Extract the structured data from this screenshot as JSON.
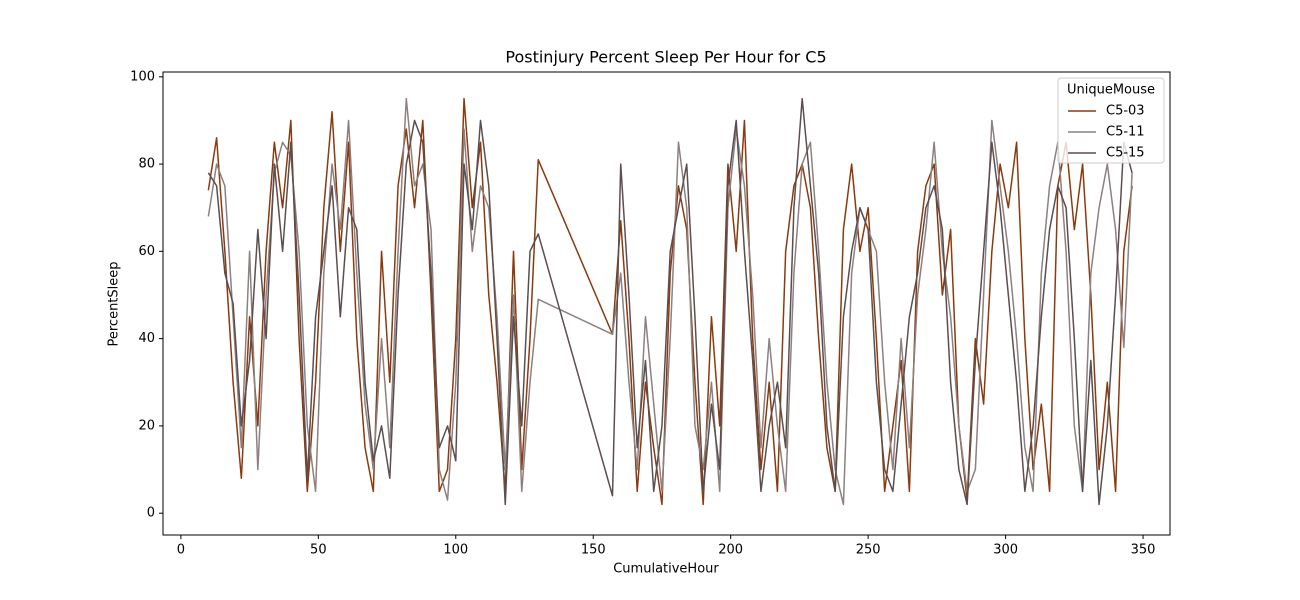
{
  "chart_data": {
    "type": "line",
    "title": "Postinjury Percent Sleep Per Hour for C5",
    "x_label": "CumulativeHour",
    "y_label": "PercentSleep",
    "legend_title": "UniqueMouse",
    "legend_position": "upper right",
    "grid": false,
    "xlim": [
      -6.5,
      359.8
    ],
    "ylim": [
      -5,
      101.1
    ],
    "xticks": [
      0,
      50,
      100,
      150,
      200,
      250,
      300,
      350
    ],
    "yticks": [
      0,
      20,
      40,
      60,
      80,
      100
    ],
    "x": [
      10,
      13,
      16,
      19,
      22,
      25,
      28,
      31,
      34,
      37,
      40,
      43,
      46,
      49,
      52,
      55,
      58,
      61,
      64,
      67,
      70,
      73,
      76,
      79,
      82,
      85,
      88,
      91,
      94,
      97,
      100,
      103,
      106,
      109,
      112,
      115,
      118,
      121,
      124,
      127,
      130,
      157,
      160,
      163,
      166,
      169,
      172,
      175,
      178,
      181,
      184,
      187,
      190,
      193,
      196,
      199,
      202,
      205,
      208,
      211,
      214,
      217,
      220,
      223,
      226,
      229,
      232,
      235,
      238,
      241,
      244,
      247,
      250,
      253,
      256,
      259,
      262,
      265,
      268,
      271,
      274,
      277,
      280,
      283,
      286,
      289,
      292,
      295,
      298,
      301,
      304,
      307,
      310,
      313,
      316,
      319,
      322,
      325,
      328,
      331,
      334,
      337,
      340,
      343,
      346
    ],
    "series": [
      {
        "name": "C5-03",
        "color": "#8b3a0f",
        "values": [
          74,
          86,
          60,
          30,
          8,
          45,
          20,
          60,
          85,
          70,
          90,
          40,
          5,
          30,
          70,
          92,
          60,
          85,
          40,
          15,
          5,
          60,
          30,
          75,
          88,
          70,
          90,
          50,
          5,
          10,
          40,
          95,
          70,
          85,
          50,
          30,
          5,
          60,
          10,
          40,
          81,
          41,
          67,
          40,
          5,
          30,
          15,
          2,
          55,
          75,
          65,
          30,
          2,
          45,
          20,
          80,
          60,
          90,
          40,
          10,
          30,
          5,
          60,
          75,
          80,
          70,
          40,
          15,
          5,
          65,
          80,
          60,
          70,
          40,
          5,
          20,
          35,
          5,
          60,
          75,
          80,
          50,
          65,
          20,
          3,
          40,
          25,
          60,
          80,
          70,
          85,
          40,
          10,
          25,
          5,
          75,
          85,
          65,
          80,
          50,
          10,
          30,
          5,
          60,
          75
        ]
      },
      {
        "name": "C5-11",
        "color": "#8c8080",
        "values": [
          68,
          80,
          75,
          45,
          15,
          60,
          10,
          50,
          78,
          85,
          82,
          60,
          20,
          5,
          55,
          80,
          65,
          90,
          55,
          25,
          10,
          40,
          15,
          60,
          95,
          75,
          80,
          65,
          10,
          3,
          30,
          88,
          60,
          75,
          70,
          45,
          10,
          50,
          5,
          30,
          49,
          41,
          55,
          30,
          10,
          45,
          25,
          5,
          40,
          85,
          70,
          20,
          10,
          30,
          5,
          70,
          88,
          75,
          50,
          15,
          40,
          20,
          5,
          55,
          80,
          85,
          60,
          30,
          10,
          2,
          55,
          70,
          65,
          60,
          30,
          10,
          40,
          15,
          50,
          65,
          85,
          60,
          45,
          20,
          5,
          10,
          50,
          90,
          75,
          60,
          40,
          15,
          5,
          55,
          75,
          85,
          60,
          20,
          5,
          55,
          70,
          80,
          65,
          38,
          78
        ]
      },
      {
        "name": "C5-15",
        "color": "#5c4e4e",
        "values": [
          78,
          75,
          55,
          48,
          20,
          35,
          65,
          40,
          80,
          60,
          85,
          50,
          8,
          45,
          60,
          75,
          45,
          70,
          65,
          30,
          12,
          20,
          8,
          50,
          80,
          90,
          85,
          55,
          15,
          20,
          12,
          80,
          65,
          90,
          75,
          40,
          2,
          45,
          20,
          60,
          64,
          4,
          80,
          50,
          15,
          35,
          5,
          20,
          60,
          70,
          80,
          45,
          5,
          25,
          10,
          75,
          90,
          60,
          35,
          5,
          20,
          30,
          15,
          70,
          95,
          75,
          55,
          20,
          5,
          45,
          60,
          70,
          65,
          30,
          10,
          5,
          25,
          45,
          55,
          70,
          75,
          65,
          30,
          10,
          2,
          35,
          60,
          85,
          70,
          50,
          30,
          5,
          20,
          45,
          65,
          75,
          70,
          40,
          5,
          35,
          2,
          20,
          50,
          85,
          78
        ]
      }
    ]
  }
}
